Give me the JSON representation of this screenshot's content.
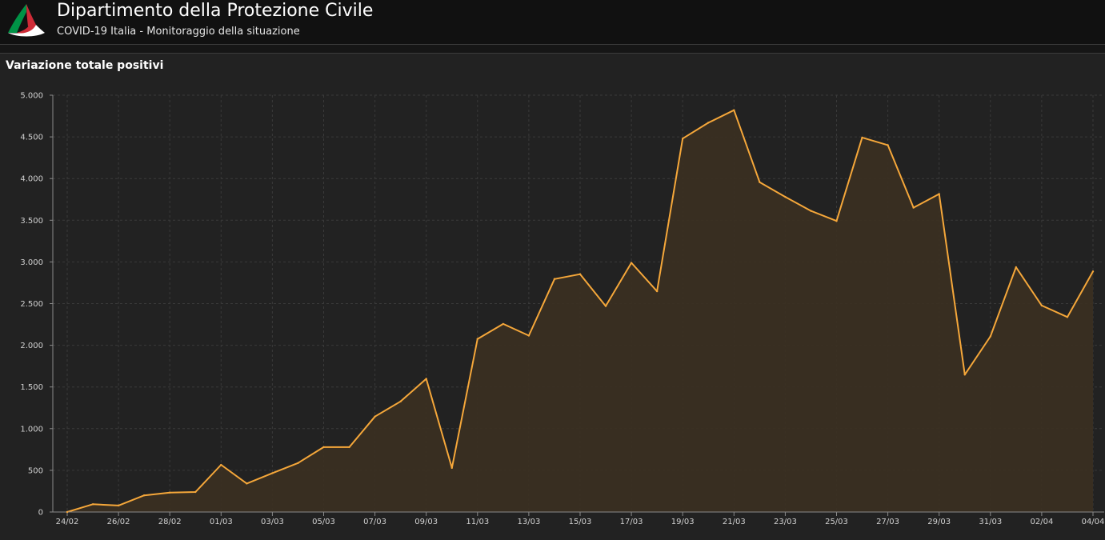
{
  "header": {
    "title": "Dipartimento della Protezione Civile",
    "subtitle": "COVID-19 Italia - Monitoraggio della situazione",
    "logo_colors": [
      "#009246",
      "#ffffff",
      "#ce2b37"
    ]
  },
  "panel": {
    "title": "Variazione totale positivi"
  },
  "chart_data": {
    "type": "area",
    "title": "Variazione totale positivi",
    "x": [
      "24/02",
      "25/02",
      "26/02",
      "27/02",
      "28/02",
      "29/02",
      "01/03",
      "02/03",
      "03/03",
      "04/03",
      "05/03",
      "06/03",
      "07/03",
      "08/03",
      "09/03",
      "10/03",
      "11/03",
      "12/03",
      "13/03",
      "14/03",
      "15/03",
      "16/03",
      "17/03",
      "18/03",
      "19/03",
      "20/03",
      "21/03",
      "22/03",
      "23/03",
      "24/03",
      "25/03",
      "26/03",
      "27/03",
      "28/03",
      "29/03",
      "30/03",
      "31/03",
      "01/04",
      "02/04",
      "03/04",
      "04/04"
    ],
    "xtick_labels": [
      "24/02",
      "26/02",
      "28/02",
      "01/03",
      "03/03",
      "05/03",
      "07/03",
      "09/03",
      "11/03",
      "13/03",
      "15/03",
      "17/03",
      "19/03",
      "21/03",
      "23/03",
      "25/03",
      "27/03",
      "29/03",
      "31/03",
      "02/04",
      "04/04"
    ],
    "series": [
      {
        "values": [
          0,
          93,
          78,
          200,
          233,
          240,
          566,
          342,
          466,
          587,
          778,
          778,
          1145,
          1326,
          1598,
          529,
          2076,
          2256,
          2116,
          2795,
          2853,
          2470,
          2989,
          2648,
          4480,
          4670,
          4821,
          3957,
          3780,
          3612,
          3491,
          4492,
          4401,
          3651,
          3815,
          1648,
          2107,
          2937,
          2477,
          2339,
          2886
        ],
        "color": "#f5a73a"
      }
    ],
    "ylim": [
      0,
      5000
    ],
    "yticks": [
      0,
      500,
      1000,
      1500,
      2000,
      2500,
      3000,
      3500,
      4000,
      4500,
      5000
    ],
    "ytick_labels": [
      "0",
      "500",
      "1.000",
      "1.500",
      "2.000",
      "2.500",
      "3.000",
      "3.500",
      "4.000",
      "4.500",
      "5.000"
    ],
    "grid": true,
    "colors": {
      "line": "#f5a73a",
      "fill": "#3a2f22",
      "grid": "#3a3a3a",
      "axis": "#8a8a8a"
    }
  }
}
